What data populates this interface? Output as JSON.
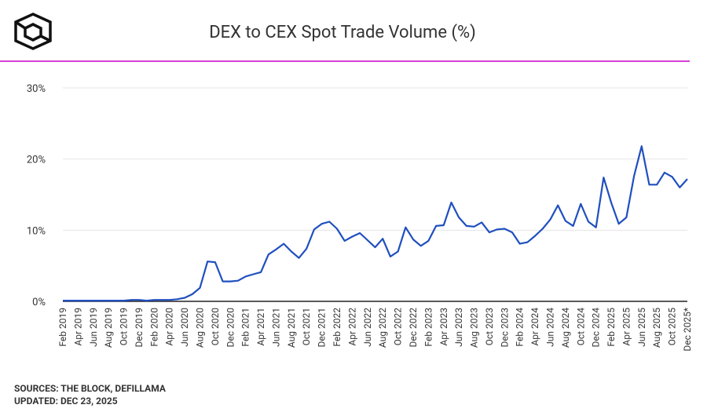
{
  "chart_data": {
    "type": "line",
    "title": "DEX to CEX Spot Trade Volume (%)",
    "sources": "SOURCES: THE BLOCK, DEFILLAMA",
    "updated": "UPDATED: DEC 23, 2025",
    "categories": [
      "Feb 2019",
      null,
      "Apr 2019",
      null,
      "Jun 2019",
      null,
      "Aug 2019",
      null,
      "Oct 2019",
      null,
      "Dec 2019",
      null,
      "Feb 2020",
      null,
      "Apr 2020",
      null,
      "Jun 2020",
      null,
      "Aug 2020",
      null,
      "Oct 2020",
      null,
      "Dec 2020",
      null,
      "Feb 2021",
      null,
      "Apr 2021",
      null,
      "Jun 2021",
      null,
      "Aug 2021",
      null,
      "Oct 2021",
      null,
      "Dec 2021",
      null,
      "Feb 2022",
      null,
      "Apr 2022",
      null,
      "Jun 2022",
      null,
      "Aug 2022",
      null,
      "Oct 2022",
      null,
      "Dec 2022",
      null,
      "Feb 2023",
      null,
      "Apr 2023",
      null,
      "Jun 2023",
      null,
      "Aug 2023",
      null,
      "Oct 2023",
      null,
      "Dec 2023",
      null,
      "Feb 2024",
      null,
      "Apr 2024",
      null,
      "Jun 2024",
      null,
      "Aug 2024",
      null,
      "Oct 2024",
      null,
      "Dec 2024",
      null,
      "Feb 2025",
      null,
      "Apr 2025",
      null,
      "Jun 2025",
      null,
      "Aug 2025",
      null,
      "Oct 2025",
      null,
      "Dec 2025*"
    ],
    "series": [
      {
        "color": "#1f4fbf",
        "values": [
          0.1,
          0.1,
          0.1,
          0.1,
          0.1,
          0.1,
          0.1,
          0.1,
          0.1,
          0.2,
          0.2,
          0.1,
          0.2,
          0.2,
          0.2,
          0.3,
          0.5,
          1.0,
          1.9,
          5.6,
          5.5,
          2.8,
          2.8,
          2.9,
          3.5,
          3.8,
          4.1,
          6.6,
          7.3,
          8.1,
          7.0,
          6.1,
          7.4,
          10.1,
          10.9,
          11.2,
          10.2,
          8.5,
          9.1,
          9.6,
          8.6,
          7.6,
          8.8,
          6.3,
          7.0,
          10.4,
          8.7,
          7.8,
          8.5,
          10.6,
          10.7,
          13.9,
          11.8,
          10.6,
          10.5,
          11.1,
          9.7,
          10.1,
          10.2,
          9.7,
          8.1,
          8.3,
          9.2,
          10.2,
          11.5,
          13.5,
          11.3,
          10.6,
          13.7,
          11.2,
          10.4,
          17.4,
          13.9,
          10.9,
          11.8,
          17.6,
          21.8,
          16.4,
          16.4,
          18.1,
          17.5,
          16.0,
          17.2
        ]
      }
    ],
    "ylim": [
      0,
      30
    ],
    "yticks": [
      {
        "value": 0,
        "label": "0%"
      },
      {
        "value": 10,
        "label": "10%"
      },
      {
        "value": 20,
        "label": "20%"
      },
      {
        "value": 30,
        "label": "30%"
      }
    ],
    "grid": true
  }
}
